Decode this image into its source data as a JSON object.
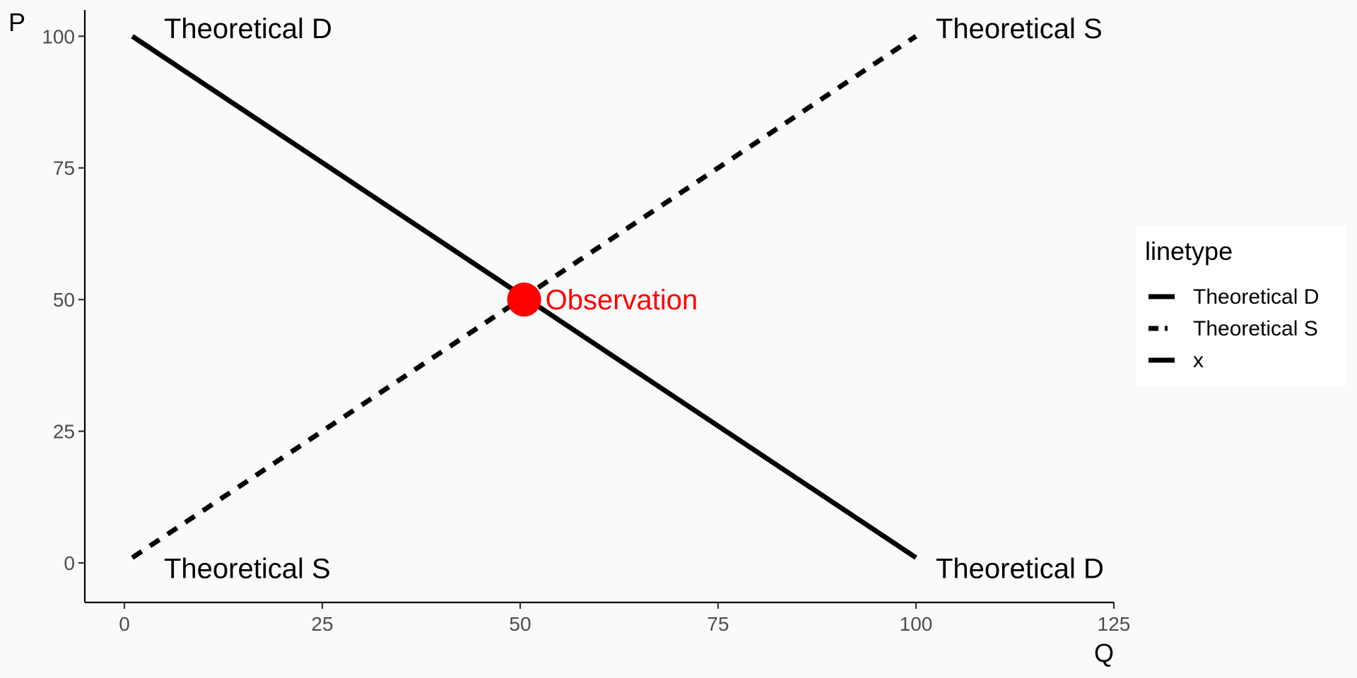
{
  "chart_data": {
    "type": "line",
    "xlabel": "Q",
    "ylabel": "P",
    "xlim": [
      -5,
      125
    ],
    "ylim": [
      -7.5,
      105
    ],
    "x_ticks": [
      0,
      25,
      50,
      75,
      100,
      125
    ],
    "y_ticks": [
      0,
      25,
      50,
      75,
      100
    ],
    "grid": false,
    "series": [
      {
        "name": "Theoretical D",
        "linetype": "solid",
        "color": "#000000",
        "points": [
          [
            1,
            100
          ],
          [
            100,
            1
          ]
        ]
      },
      {
        "name": "Theoretical S",
        "linetype": "dashed",
        "color": "#000000",
        "points": [
          [
            1,
            1
          ],
          [
            100,
            100
          ]
        ]
      }
    ],
    "observation": {
      "label": "Observation",
      "x": 50.5,
      "y": 50,
      "color": "#ff0000"
    },
    "line_labels": [
      {
        "text": "Theoretical D",
        "x": 5,
        "y": 101.5
      },
      {
        "text": "Theoretical S",
        "x": 102.5,
        "y": 101.5
      },
      {
        "text": "Theoretical S",
        "x": 5,
        "y": -1
      },
      {
        "text": "Theoretical D",
        "x": 102.5,
        "y": -1
      }
    ],
    "legend": {
      "title": "linetype",
      "placement": "right",
      "entries": [
        {
          "label": "Theoretical D",
          "linetype": "solid"
        },
        {
          "label": "Theoretical S",
          "linetype": "dashed"
        },
        {
          "label": "x",
          "linetype": "longdash"
        }
      ]
    }
  }
}
